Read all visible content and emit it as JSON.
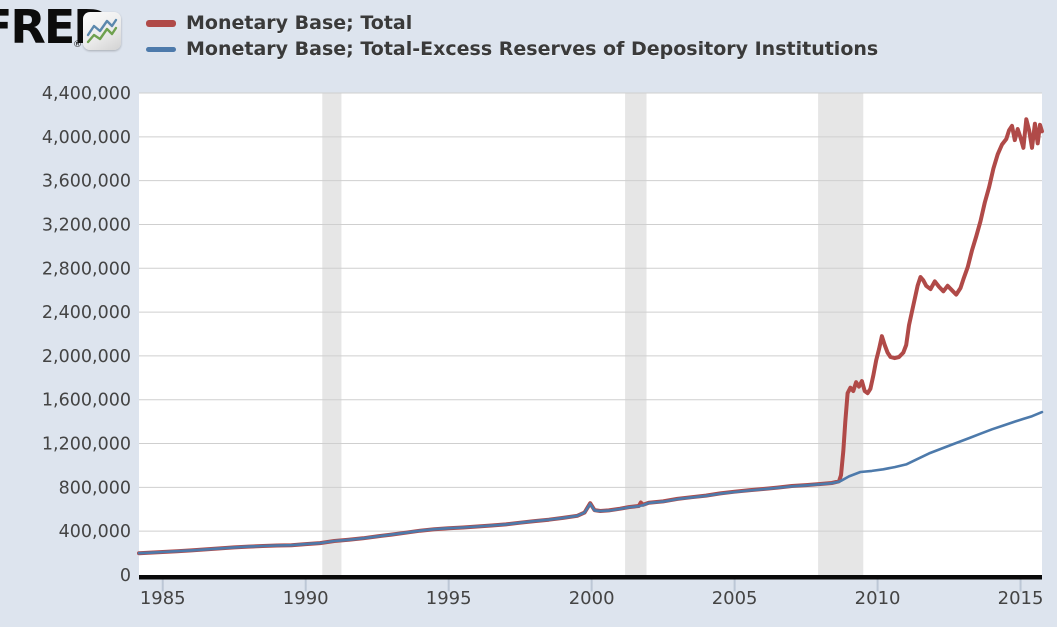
{
  "header": {
    "logo_text": "FRED",
    "logo_registered": "®",
    "legend": [
      {
        "label": "Monetary Base; Total",
        "color": "#b04a48"
      },
      {
        "label": "Monetary Base; Total-Excess Reserves of Depository Institutions",
        "color": "#4d7aab"
      }
    ]
  },
  "colors": {
    "page_background": "#dde4ee",
    "plot_background": "#ffffff",
    "gridline": "#cfcfcf",
    "recession_band": "#e6e6e6",
    "axis_line": "#0a0a0a",
    "tick_mark": "#bcc7d6",
    "axis_text": "#444444",
    "series_red": "#b04a48",
    "series_blue": "#4d7aab"
  },
  "chart_data": {
    "type": "line",
    "title": "",
    "xlabel": "",
    "ylabel": "",
    "grid": true,
    "legend_position": "top-left",
    "x_range": [
      1984.17,
      2015.75
    ],
    "y_range": [
      0,
      4400000
    ],
    "x_ticks": [
      1985,
      1990,
      1995,
      2000,
      2005,
      2010,
      2015
    ],
    "x_tick_labels": [
      "1985",
      "1990",
      "1995",
      "2000",
      "2005",
      "2010",
      "2015"
    ],
    "y_ticks": [
      0,
      400000,
      800000,
      1200000,
      1600000,
      2000000,
      2400000,
      2800000,
      3200000,
      3600000,
      4000000,
      4400000
    ],
    "y_tick_labels": [
      "0",
      "400,000",
      "800,000",
      "1,200,000",
      "1,600,000",
      "2,000,000",
      "2,400,000",
      "2,800,000",
      "3,200,000",
      "3,600,000",
      "4,000,000",
      "4,400,000"
    ],
    "recession_bands": [
      [
        1990.58,
        1991.25
      ],
      [
        2001.17,
        2001.92
      ],
      [
        2007.92,
        2009.5
      ]
    ],
    "series": [
      {
        "name": "Monetary Base; Total",
        "color": "#b04a48",
        "stroke_width": 4,
        "points": [
          [
            1984.17,
            199000
          ],
          [
            1984.5,
            203000
          ],
          [
            1985.0,
            210000
          ],
          [
            1985.5,
            217000
          ],
          [
            1986.0,
            225000
          ],
          [
            1986.5,
            234000
          ],
          [
            1987.0,
            243000
          ],
          [
            1987.5,
            252000
          ],
          [
            1988.0,
            259000
          ],
          [
            1988.5,
            265000
          ],
          [
            1989.0,
            269000
          ],
          [
            1989.5,
            272000
          ],
          [
            1990.0,
            282000
          ],
          [
            1990.5,
            291000
          ],
          [
            1991.0,
            310000
          ],
          [
            1991.5,
            321000
          ],
          [
            1992.0,
            335000
          ],
          [
            1992.5,
            352000
          ],
          [
            1993.0,
            369000
          ],
          [
            1993.5,
            386000
          ],
          [
            1994.0,
            404000
          ],
          [
            1994.5,
            418000
          ],
          [
            1995.0,
            427000
          ],
          [
            1995.5,
            434000
          ],
          [
            1996.0,
            443000
          ],
          [
            1996.5,
            452000
          ],
          [
            1997.0,
            462000
          ],
          [
            1997.5,
            477000
          ],
          [
            1998.0,
            492000
          ],
          [
            1998.5,
            505000
          ],
          [
            1999.0,
            521000
          ],
          [
            1999.5,
            540000
          ],
          [
            1999.75,
            570000
          ],
          [
            1999.95,
            655000
          ],
          [
            2000.1,
            592000
          ],
          [
            2000.3,
            584000
          ],
          [
            2000.6,
            590000
          ],
          [
            2001.0,
            605000
          ],
          [
            2001.3,
            620000
          ],
          [
            2001.65,
            630000
          ],
          [
            2001.72,
            662000
          ],
          [
            2001.8,
            641000
          ],
          [
            2002.0,
            660000
          ],
          [
            2002.5,
            672000
          ],
          [
            2003.0,
            695000
          ],
          [
            2003.5,
            710000
          ],
          [
            2004.0,
            725000
          ],
          [
            2004.5,
            745000
          ],
          [
            2005.0,
            760000
          ],
          [
            2005.5,
            773000
          ],
          [
            2006.0,
            785000
          ],
          [
            2006.5,
            798000
          ],
          [
            2007.0,
            812000
          ],
          [
            2007.5,
            821000
          ],
          [
            2008.0,
            831000
          ],
          [
            2008.4,
            840000
          ],
          [
            2008.65,
            855000
          ],
          [
            2008.72,
            910000
          ],
          [
            2008.8,
            1130000
          ],
          [
            2008.87,
            1400000
          ],
          [
            2008.95,
            1660000
          ],
          [
            2009.05,
            1710000
          ],
          [
            2009.15,
            1680000
          ],
          [
            2009.25,
            1760000
          ],
          [
            2009.35,
            1720000
          ],
          [
            2009.45,
            1770000
          ],
          [
            2009.55,
            1680000
          ],
          [
            2009.65,
            1660000
          ],
          [
            2009.75,
            1700000
          ],
          [
            2009.85,
            1820000
          ],
          [
            2009.95,
            1960000
          ],
          [
            2010.05,
            2060000
          ],
          [
            2010.15,
            2180000
          ],
          [
            2010.25,
            2100000
          ],
          [
            2010.35,
            2030000
          ],
          [
            2010.45,
            1990000
          ],
          [
            2010.6,
            1980000
          ],
          [
            2010.75,
            1990000
          ],
          [
            2010.9,
            2030000
          ],
          [
            2011.0,
            2100000
          ],
          [
            2011.1,
            2280000
          ],
          [
            2011.25,
            2460000
          ],
          [
            2011.4,
            2640000
          ],
          [
            2011.5,
            2720000
          ],
          [
            2011.6,
            2690000
          ],
          [
            2011.7,
            2640000
          ],
          [
            2011.85,
            2610000
          ],
          [
            2012.0,
            2680000
          ],
          [
            2012.15,
            2630000
          ],
          [
            2012.3,
            2590000
          ],
          [
            2012.45,
            2640000
          ],
          [
            2012.6,
            2600000
          ],
          [
            2012.75,
            2560000
          ],
          [
            2012.9,
            2620000
          ],
          [
            2013.0,
            2700000
          ],
          [
            2013.15,
            2810000
          ],
          [
            2013.3,
            2960000
          ],
          [
            2013.45,
            3090000
          ],
          [
            2013.6,
            3230000
          ],
          [
            2013.75,
            3400000
          ],
          [
            2013.9,
            3540000
          ],
          [
            2014.05,
            3710000
          ],
          [
            2014.2,
            3840000
          ],
          [
            2014.35,
            3930000
          ],
          [
            2014.5,
            3980000
          ],
          [
            2014.6,
            4060000
          ],
          [
            2014.7,
            4100000
          ],
          [
            2014.8,
            3970000
          ],
          [
            2014.9,
            4070000
          ],
          [
            2015.0,
            3990000
          ],
          [
            2015.1,
            3900000
          ],
          [
            2015.2,
            4160000
          ],
          [
            2015.3,
            4060000
          ],
          [
            2015.4,
            3900000
          ],
          [
            2015.5,
            4120000
          ],
          [
            2015.6,
            3940000
          ],
          [
            2015.68,
            4110000
          ],
          [
            2015.75,
            4050000
          ]
        ]
      },
      {
        "name": "Monetary Base; Total-Excess Reserves of Depository Institutions",
        "color": "#4d7aab",
        "stroke_width": 2.6,
        "points": [
          [
            1984.17,
            199000
          ],
          [
            1984.5,
            203000
          ],
          [
            1985.0,
            210000
          ],
          [
            1985.5,
            217000
          ],
          [
            1986.0,
            225000
          ],
          [
            1986.5,
            234000
          ],
          [
            1987.0,
            243000
          ],
          [
            1987.5,
            252000
          ],
          [
            1988.0,
            259000
          ],
          [
            1988.5,
            265000
          ],
          [
            1989.0,
            269000
          ],
          [
            1989.5,
            272000
          ],
          [
            1990.0,
            282000
          ],
          [
            1990.5,
            291000
          ],
          [
            1991.0,
            310000
          ],
          [
            1991.5,
            321000
          ],
          [
            1992.0,
            335000
          ],
          [
            1992.5,
            352000
          ],
          [
            1993.0,
            369000
          ],
          [
            1993.5,
            386000
          ],
          [
            1994.0,
            404000
          ],
          [
            1994.5,
            418000
          ],
          [
            1995.0,
            427000
          ],
          [
            1995.5,
            434000
          ],
          [
            1996.0,
            443000
          ],
          [
            1996.5,
            452000
          ],
          [
            1997.0,
            462000
          ],
          [
            1997.5,
            477000
          ],
          [
            1998.0,
            492000
          ],
          [
            1998.5,
            505000
          ],
          [
            1999.0,
            521000
          ],
          [
            1999.5,
            540000
          ],
          [
            1999.75,
            570000
          ],
          [
            1999.95,
            650000
          ],
          [
            2000.1,
            590000
          ],
          [
            2000.3,
            583000
          ],
          [
            2000.6,
            588000
          ],
          [
            2001.0,
            603000
          ],
          [
            2001.3,
            618000
          ],
          [
            2001.65,
            628000
          ],
          [
            2001.8,
            638000
          ],
          [
            2002.0,
            658000
          ],
          [
            2002.5,
            670000
          ],
          [
            2003.0,
            693000
          ],
          [
            2003.5,
            708000
          ],
          [
            2004.0,
            723000
          ],
          [
            2004.5,
            743000
          ],
          [
            2005.0,
            758000
          ],
          [
            2005.5,
            771000
          ],
          [
            2006.0,
            783000
          ],
          [
            2006.5,
            796000
          ],
          [
            2007.0,
            810000
          ],
          [
            2007.5,
            819000
          ],
          [
            2008.0,
            829000
          ],
          [
            2008.4,
            838000
          ],
          [
            2008.65,
            852000
          ],
          [
            2008.72,
            860000
          ],
          [
            2009.0,
            900000
          ],
          [
            2009.4,
            940000
          ],
          [
            2009.8,
            950000
          ],
          [
            2010.2,
            965000
          ],
          [
            2010.6,
            985000
          ],
          [
            2011.0,
            1010000
          ],
          [
            2011.4,
            1060000
          ],
          [
            2011.8,
            1110000
          ],
          [
            2012.2,
            1150000
          ],
          [
            2012.6,
            1190000
          ],
          [
            2012.9,
            1220000
          ],
          [
            2013.2,
            1250000
          ],
          [
            2013.6,
            1290000
          ],
          [
            2014.0,
            1330000
          ],
          [
            2014.4,
            1365000
          ],
          [
            2014.8,
            1400000
          ],
          [
            2015.1,
            1425000
          ],
          [
            2015.4,
            1450000
          ],
          [
            2015.75,
            1487000
          ]
        ]
      }
    ]
  }
}
